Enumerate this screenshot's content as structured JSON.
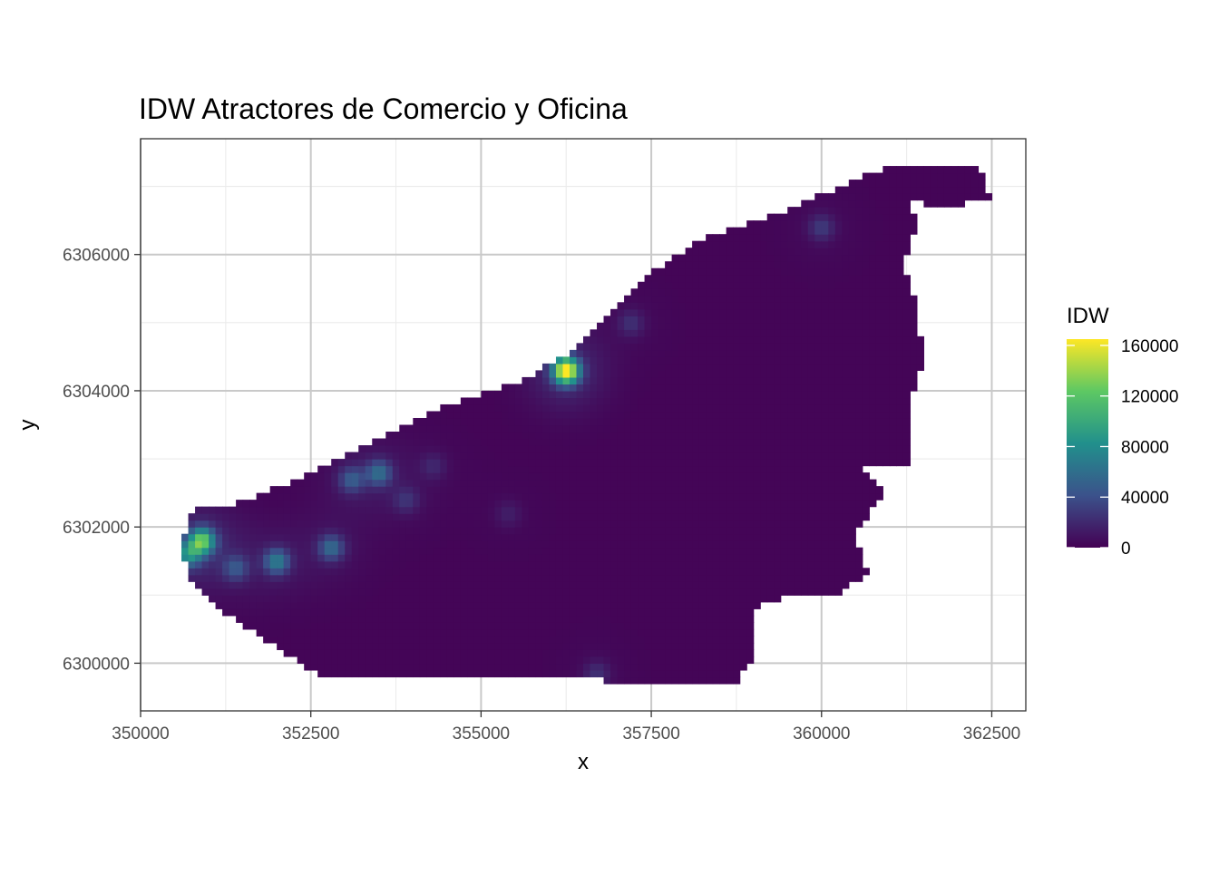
{
  "chart_data": {
    "type": "heatmap",
    "title": "IDW Atractores de Comercio y Oficina",
    "xlabel": "x",
    "ylabel": "y",
    "xlim": [
      350000,
      363000
    ],
    "ylim": [
      6299300,
      6307700
    ],
    "x_ticks": [
      {
        "value": 350000,
        "label": "350000"
      },
      {
        "value": 352500,
        "label": "352500"
      },
      {
        "value": 355000,
        "label": "355000"
      },
      {
        "value": 357500,
        "label": "357500"
      },
      {
        "value": 360000,
        "label": "360000"
      },
      {
        "value": 362500,
        "label": "362500"
      }
    ],
    "y_ticks": [
      {
        "value": 6300000,
        "label": "6300000"
      },
      {
        "value": 6302000,
        "label": "6302000"
      },
      {
        "value": 6304000,
        "label": "6304000"
      },
      {
        "value": 6306000,
        "label": "6306000"
      }
    ],
    "grid": true,
    "legend": {
      "title": "IDW",
      "position": "right",
      "range": [
        0,
        165000
      ],
      "breaks": [
        {
          "value": 0,
          "label": "0"
        },
        {
          "value": 40000,
          "label": "40000"
        },
        {
          "value": 80000,
          "label": "80000"
        },
        {
          "value": 120000,
          "label": "120000"
        },
        {
          "value": 160000,
          "label": "160000"
        }
      ],
      "colormap": "viridis",
      "colors": [
        "#440154",
        "#3b528b",
        "#21908c",
        "#5dc863",
        "#fde725"
      ]
    },
    "grid_cell_size": 100,
    "region_boundary": [
      [
        350600,
        6301700
      ],
      [
        350700,
        6301300
      ],
      [
        351300,
        6300700
      ],
      [
        352200,
        6300100
      ],
      [
        352700,
        6299800
      ],
      [
        354000,
        6299800
      ],
      [
        355500,
        6299800
      ],
      [
        356600,
        6299800
      ],
      [
        357200,
        6299650
      ],
      [
        357700,
        6299700
      ],
      [
        358700,
        6299650
      ],
      [
        359000,
        6300100
      ],
      [
        358950,
        6300800
      ],
      [
        359500,
        6301000
      ],
      [
        360100,
        6300950
      ],
      [
        360700,
        6301300
      ],
      [
        360500,
        6301900
      ],
      [
        360900,
        6302500
      ],
      [
        360600,
        6302900
      ],
      [
        361300,
        6302900
      ],
      [
        361300,
        6303800
      ],
      [
        361500,
        6304500
      ],
      [
        361400,
        6305200
      ],
      [
        361200,
        6305900
      ],
      [
        361400,
        6306400
      ],
      [
        361300,
        6306800
      ],
      [
        361700,
        6306700
      ],
      [
        362500,
        6306800
      ],
      [
        362300,
        6307300
      ],
      [
        361000,
        6307300
      ],
      [
        360300,
        6307000
      ],
      [
        359600,
        6306700
      ],
      [
        358200,
        6306200
      ],
      [
        357600,
        6305800
      ],
      [
        356800,
        6305000
      ],
      [
        356200,
        6304500
      ],
      [
        355500,
        6304100
      ],
      [
        354500,
        6303800
      ],
      [
        353300,
        6303200
      ],
      [
        352300,
        6302700
      ],
      [
        351300,
        6302300
      ],
      [
        350800,
        6302300
      ]
    ],
    "background_value": 2000,
    "hotspots": [
      {
        "x": 356250,
        "y": 6304300,
        "peak": 165000
      },
      {
        "x": 350900,
        "y": 6301800,
        "peak": 110000
      },
      {
        "x": 350700,
        "y": 6301600,
        "peak": 65000
      },
      {
        "x": 352000,
        "y": 6301500,
        "peak": 60000
      },
      {
        "x": 352800,
        "y": 6301700,
        "peak": 50000
      },
      {
        "x": 353500,
        "y": 6302800,
        "peak": 50000
      },
      {
        "x": 353100,
        "y": 6302700,
        "peak": 40000
      },
      {
        "x": 351400,
        "y": 6301400,
        "peak": 35000
      },
      {
        "x": 360000,
        "y": 6306400,
        "peak": 25000
      },
      {
        "x": 357200,
        "y": 6305000,
        "peak": 20000
      },
      {
        "x": 353900,
        "y": 6302400,
        "peak": 20000
      },
      {
        "x": 356700,
        "y": 6299850,
        "peak": 20000
      },
      {
        "x": 354300,
        "y": 6302900,
        "peak": 15000
      },
      {
        "x": 355400,
        "y": 6302200,
        "peak": 12000
      }
    ]
  }
}
